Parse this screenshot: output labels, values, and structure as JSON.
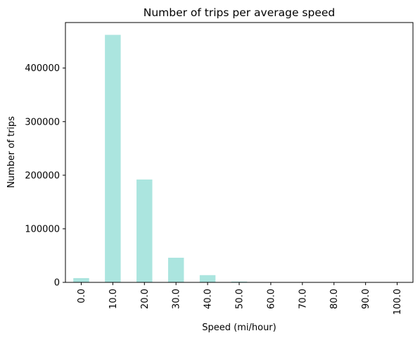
{
  "chart_data": {
    "type": "bar",
    "title": "Number of trips per average speed",
    "xlabel": "Speed (mi/hour)",
    "ylabel": "Number of trips",
    "categories": [
      "0.0",
      "10.0",
      "20.0",
      "30.0",
      "40.0",
      "50.0",
      "60.0",
      "70.0",
      "80.0",
      "90.0",
      "100.0"
    ],
    "values": [
      8000,
      462000,
      192000,
      46000,
      13500,
      1500,
      300,
      150,
      80,
      40,
      20
    ],
    "ylim": [
      0,
      485000
    ],
    "yticks": [
      0,
      100000,
      200000,
      300000,
      400000
    ],
    "ytick_labels": [
      "0",
      "100000",
      "200000",
      "300000",
      "400000"
    ],
    "bar_color": "#abe5df",
    "grid": false,
    "legend": "none"
  }
}
